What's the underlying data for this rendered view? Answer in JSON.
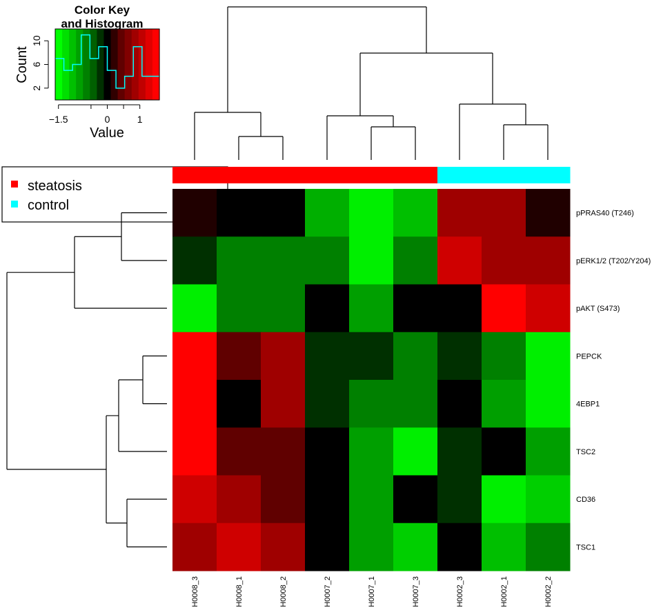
{
  "chart_data": {
    "type": "heatmap",
    "color_key": {
      "title_line1": "Color Key",
      "title_line2": "and Histogram",
      "ylabel": "Count",
      "xlabel": "Value",
      "x_ticks": [
        "-1.5",
        "-0.5",
        "0",
        "0.5",
        "1"
      ],
      "x_tick_labels": [
        "−1.5",
        "",
        "0",
        "",
        "1"
      ],
      "x_tick_values": [
        -1.5,
        -0.5,
        0,
        0.5,
        1
      ],
      "y_ticks": [
        2,
        6,
        10
      ],
      "range": [
        -1.6,
        1.6
      ],
      "colors": [
        "#00ff00",
        "#00e000",
        "#00c000",
        "#00a000",
        "#008000",
        "#006000",
        "#003000",
        "#000000",
        "#300000",
        "#600000",
        "#800000",
        "#a00000",
        "#c00000",
        "#e00000",
        "#ff0000"
      ],
      "histogram": [
        7,
        5,
        6,
        11,
        7,
        9,
        5,
        2,
        4,
        9,
        4,
        4
      ]
    },
    "legend": {
      "placement": "left",
      "items": [
        {
          "label": "steatosis",
          "color": "#ff0000"
        },
        {
          "label": "control",
          "color": "#00ffff"
        }
      ]
    },
    "columns": [
      "H0008_3",
      "H0008_1",
      "H0008_2",
      "H0007_2",
      "H0007_1",
      "H0007_3",
      "H0002_3",
      "H0002_1",
      "H0002_2"
    ],
    "column_groups": [
      "steatosis",
      "steatosis",
      "steatosis",
      "steatosis",
      "steatosis",
      "steatosis",
      "control",
      "control",
      "control"
    ],
    "rows": [
      "pPRAS40 (T246)",
      "pERK1/2 (T202/Y204)",
      "pAKT (S473)",
      "PEPCK",
      "4EBP1",
      "TSC2",
      "CD36",
      "TSC1"
    ],
    "values": [
      [
        0.2,
        0,
        0,
        -1.1,
        -1.5,
        -1.2,
        1.0,
        1.0,
        0.2
      ],
      [
        -0.3,
        -0.8,
        -0.8,
        -0.8,
        -1.5,
        -0.8,
        1.3,
        1.0,
        1.0
      ],
      [
        -1.5,
        -0.8,
        -0.8,
        0,
        -1.0,
        0,
        0,
        1.6,
        1.3
      ],
      [
        1.6,
        0.6,
        1.0,
        -0.3,
        -0.3,
        -0.8,
        -0.3,
        -0.8,
        -1.5
      ],
      [
        1.6,
        0,
        1.0,
        -0.3,
        -0.8,
        -0.8,
        0,
        -1.0,
        -1.5
      ],
      [
        1.6,
        0.6,
        0.6,
        0,
        -1.0,
        -1.5,
        -0.3,
        0,
        -1.0
      ],
      [
        1.3,
        1.0,
        0.6,
        0,
        -1.0,
        0,
        -0.3,
        -1.5,
        -1.3
      ],
      [
        1.0,
        1.3,
        1.0,
        0,
        -1.0,
        -1.3,
        0,
        -1.2,
        -0.8
      ]
    ]
  }
}
